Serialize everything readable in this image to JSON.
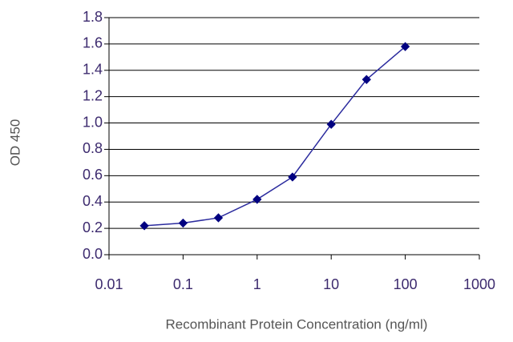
{
  "chart_data": {
    "type": "line",
    "x_label": "Recombinant Protein Concentration (ng/ml)",
    "y_label": "OD 450",
    "x": [
      0.03,
      0.1,
      0.3,
      1,
      3,
      10,
      30,
      100
    ],
    "series": [
      {
        "color": "#2b2b9e",
        "marker_color": "#000080",
        "values": [
          0.22,
          0.24,
          0.28,
          0.42,
          0.59,
          0.99,
          1.33,
          1.58
        ]
      }
    ],
    "xscale": "log",
    "xlim": [
      0.01,
      1000
    ],
    "xticks": [
      0.01,
      0.1,
      1,
      10,
      100,
      1000
    ],
    "ylim": [
      0,
      1.8
    ],
    "yticks": [
      {
        "value": 0,
        "label": "0.0"
      },
      0.2,
      0.4,
      0.6,
      0.8,
      {
        "value": 1,
        "label": "1.0"
      },
      1.2,
      1.4,
      1.6,
      1.8
    ],
    "grid": true
  }
}
